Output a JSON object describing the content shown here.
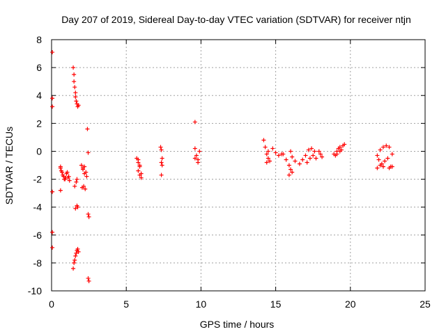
{
  "chart_data": {
    "type": "scatter",
    "title": "Day 207 of 2019, Sidereal Day-to-day VTEC variation (SDTVAR) for receiver ntjn",
    "xlabel": "GPS time / hours",
    "ylabel": "SDTVAR / TECUs",
    "xlim": [
      0,
      25
    ],
    "ylim": [
      -10,
      8
    ],
    "xticks": [
      0,
      5,
      10,
      15,
      20,
      25
    ],
    "yticks": [
      -10,
      -8,
      -6,
      -4,
      -2,
      0,
      2,
      4,
      6,
      8
    ],
    "grid": true,
    "marker": "+",
    "marker_color": "#ff0000",
    "x": [
      0.05,
      0.05,
      0.05,
      0.05,
      0.05,
      0.05,
      0.6,
      0.7,
      0.8,
      0.9,
      1.0,
      1.1,
      1.2,
      0.65,
      0.75,
      0.85,
      0.95,
      1.05,
      1.15,
      0.6,
      0.6,
      1.45,
      1.5,
      1.5,
      1.55,
      1.6,
      1.6,
      1.65,
      1.7,
      1.75,
      1.8,
      1.55,
      1.65,
      1.7,
      1.75,
      1.6,
      1.7,
      1.45,
      1.5,
      1.55,
      1.6,
      1.65,
      1.7,
      1.75,
      1.8,
      2.0,
      2.1,
      2.2,
      2.3,
      2.05,
      2.15,
      2.25,
      2.35,
      2.1,
      2.2,
      2.4,
      2.45,
      2.45,
      2.5,
      2.45,
      2.5,
      5.7,
      5.8,
      5.9,
      6.0,
      5.8,
      5.9,
      6.0,
      5.8,
      5.9,
      7.3,
      7.35,
      7.4,
      7.35,
      7.4,
      7.35,
      9.6,
      9.6,
      9.7,
      9.8,
      9.9,
      9.6,
      9.8,
      14.2,
      14.3,
      14.4,
      14.5,
      14.6,
      14.4,
      14.5,
      14.8,
      15.0,
      15.2,
      15.4,
      15.5,
      15.7,
      15.9,
      16.0,
      16.1,
      15.9,
      16.1,
      16.0,
      16.3,
      16.6,
      16.8,
      17.0,
      17.2,
      17.4,
      17.6,
      17.1,
      17.3,
      17.5,
      17.7,
      17.9,
      18.0,
      18.1,
      18.9,
      19.0,
      19.1,
      19.2,
      19.3,
      19.4,
      19.5,
      19.6,
      19.1,
      19.3,
      21.8,
      22.0,
      22.2,
      22.4,
      22.6,
      22.8,
      21.9,
      22.1,
      22.3,
      22.5,
      22.7,
      21.8,
      22.0,
      22.2,
      22.6,
      22.8
    ],
    "y": [
      7.1,
      3.8,
      3.2,
      -5.8,
      -6.9,
      -2.9,
      -1.2,
      -1.5,
      -1.8,
      -2.0,
      -1.6,
      -1.9,
      -2.1,
      -1.4,
      -1.7,
      -2.0,
      -1.9,
      -1.5,
      -1.8,
      -2.8,
      -1.1,
      6.0,
      5.5,
      5.0,
      4.6,
      4.2,
      3.9,
      3.6,
      3.4,
      3.2,
      3.3,
      -2.5,
      -2.2,
      -2.0,
      -4.0,
      -4.1,
      -3.9,
      -8.4,
      -8.0,
      -7.8,
      -7.5,
      -7.3,
      -7.1,
      -7.0,
      -7.2,
      -1.0,
      -1.3,
      -1.6,
      -1.5,
      -2.6,
      -2.5,
      -2.7,
      -1.8,
      -1.2,
      -1.1,
      1.6,
      -0.1,
      -4.5,
      -4.7,
      -9.1,
      -9.3,
      -0.5,
      -0.8,
      -1.0,
      -1.6,
      -1.4,
      -1.7,
      -1.9,
      -0.6,
      -1.1,
      0.3,
      0.1,
      -0.5,
      -0.8,
      -1.0,
      -1.7,
      2.1,
      0.2,
      -0.3,
      -0.6,
      0.0,
      -0.5,
      -0.8,
      0.8,
      0.3,
      -0.2,
      -0.5,
      -0.7,
      -0.8,
      0.0,
      0.2,
      -0.1,
      -0.3,
      -0.2,
      -0.2,
      -0.6,
      -1.0,
      -1.3,
      -1.5,
      -1.7,
      -0.4,
      0.0,
      -0.7,
      -0.9,
      -0.6,
      -0.3,
      0.1,
      0.2,
      0.0,
      -0.8,
      -0.5,
      -0.3,
      -0.5,
      0.0,
      -0.2,
      -0.4,
      -0.2,
      -0.3,
      0.0,
      0.2,
      0.3,
      0.1,
      0.4,
      0.5,
      -0.2,
      0.0,
      -0.3,
      0.1,
      0.3,
      0.4,
      0.3,
      -0.2,
      -0.6,
      -0.9,
      -0.7,
      -0.5,
      -1.1,
      -1.2,
      -1.0,
      -1.1,
      -1.2,
      -1.1
    ]
  }
}
